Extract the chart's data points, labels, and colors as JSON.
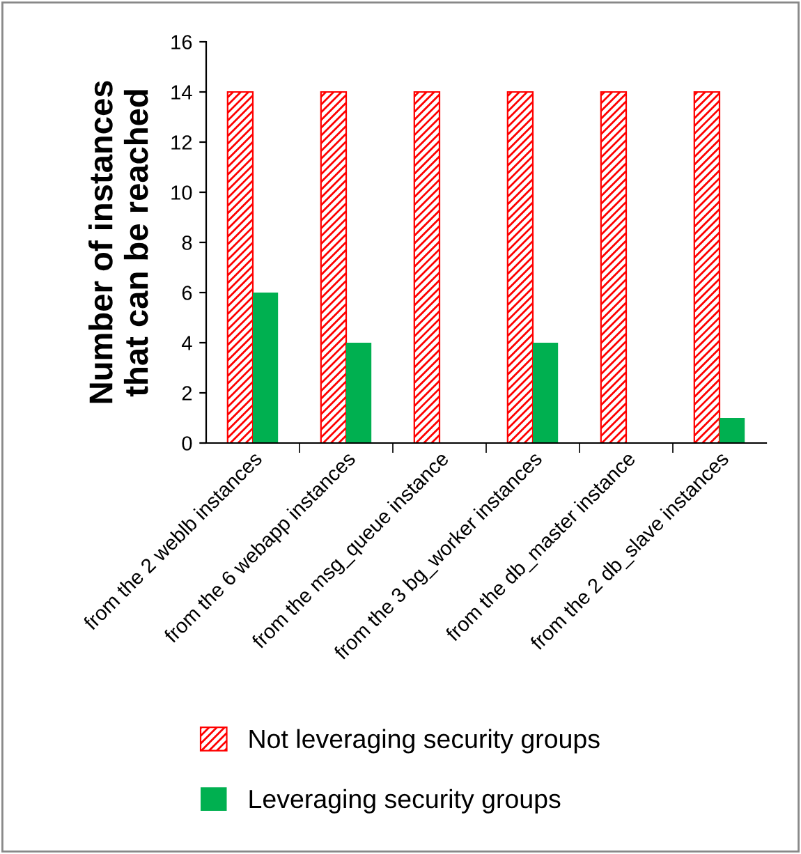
{
  "chart_data": {
    "type": "bar",
    "ylabel": "Number of instances\nthat can be reached",
    "categories": [
      "from the 2 weblb instances",
      "from the 6 webapp instances",
      "from the msg_queue instance",
      "from the 3 bg_worker instances",
      "from the db_master instance",
      "from the 2 db_slave instances"
    ],
    "series": [
      {
        "name": "Not leveraging security groups",
        "color": "#ff0000",
        "values": [
          14,
          14,
          14,
          14,
          14,
          14
        ]
      },
      {
        "name": "Leveraging security groups",
        "color": "#00b050",
        "values": [
          6,
          4,
          0,
          4,
          0,
          1
        ]
      }
    ],
    "ylim": [
      0,
      16
    ],
    "yticks": [
      0,
      2,
      4,
      6,
      8,
      10,
      12,
      14,
      16
    ],
    "grid": false,
    "legend": "bottom"
  }
}
